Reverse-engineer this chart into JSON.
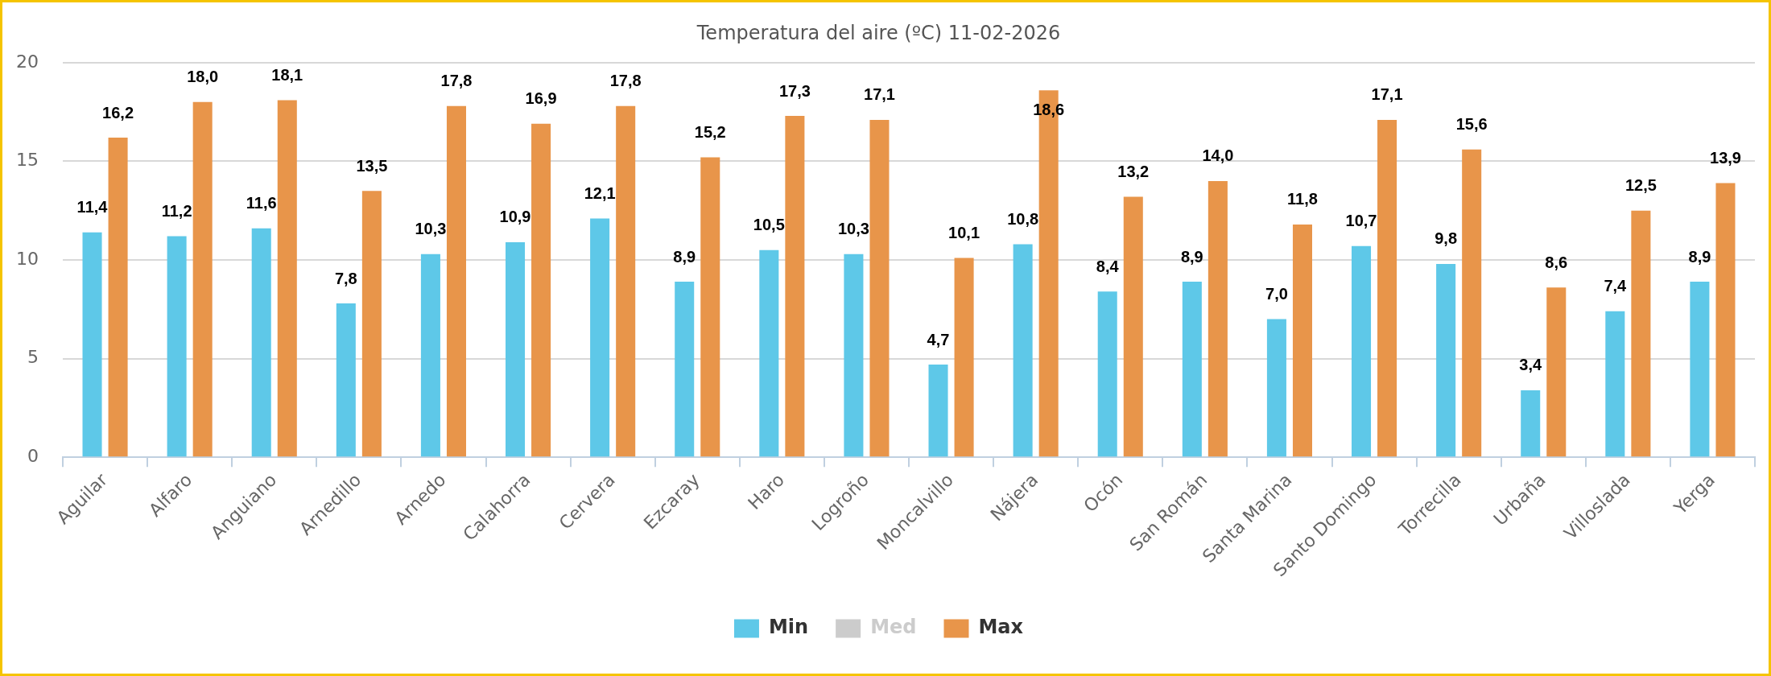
{
  "chart_data": {
    "type": "bar",
    "title": "Temperatura del aire (ºC) 11-02-2026",
    "categories": [
      "Aguilar",
      "Alfaro",
      "Anguiano",
      "Arnedillo",
      "Arnedo",
      "Calahorra",
      "Cervera",
      "Ezcaray",
      "Haro",
      "Logroño",
      "Moncalvillo",
      "Nájera",
      "Ocón",
      "San Román",
      "Santa Marina",
      "Santo Domingo",
      "Torrecilla",
      "Urbaña",
      "Villoslada",
      "Yerga"
    ],
    "series": [
      {
        "name": "Min",
        "color": "#5ec8e8",
        "values": [
          11.4,
          11.2,
          11.6,
          7.8,
          10.3,
          10.9,
          12.1,
          8.9,
          10.5,
          10.3,
          4.7,
          10.8,
          8.4,
          8.9,
          7.0,
          10.7,
          9.8,
          3.4,
          7.4,
          8.9
        ],
        "value_labels": [
          "11,4",
          "11,2",
          "11,6",
          "7,8",
          "10,3",
          "10,9",
          "12,1",
          "8,9",
          "10,5",
          "10,3",
          "4,7",
          "10,8",
          "8,4",
          "8,9",
          "7,0",
          "10,7",
          "9,8",
          "3,4",
          "7,4",
          "8,9"
        ]
      },
      {
        "name": "Med",
        "color": "#cccccc",
        "values": [
          null,
          null,
          null,
          null,
          null,
          null,
          null,
          null,
          null,
          null,
          null,
          null,
          null,
          null,
          null,
          null,
          null,
          null,
          null,
          null
        ]
      },
      {
        "name": "Max",
        "color": "#e8954a",
        "values": [
          16.2,
          18.0,
          18.1,
          13.5,
          17.8,
          16.9,
          17.8,
          15.2,
          17.3,
          17.1,
          10.1,
          18.6,
          13.2,
          14.0,
          11.8,
          17.1,
          15.6,
          8.6,
          12.5,
          13.9
        ],
        "value_labels": [
          "16,2",
          "18,0",
          "18,1",
          "13,5",
          "17,8",
          "16,9",
          "17,8",
          "15,2",
          "17,3",
          "17,1",
          "10,1",
          "18,6",
          "13,2",
          "14,0",
          "11,8",
          "17,1",
          "15,6",
          "8,6",
          "12,5",
          "13,9"
        ]
      }
    ],
    "ylim": [
      0,
      20
    ],
    "yticks": [
      0,
      5,
      10,
      15,
      20
    ],
    "grid": "y",
    "legend": "bottom"
  }
}
